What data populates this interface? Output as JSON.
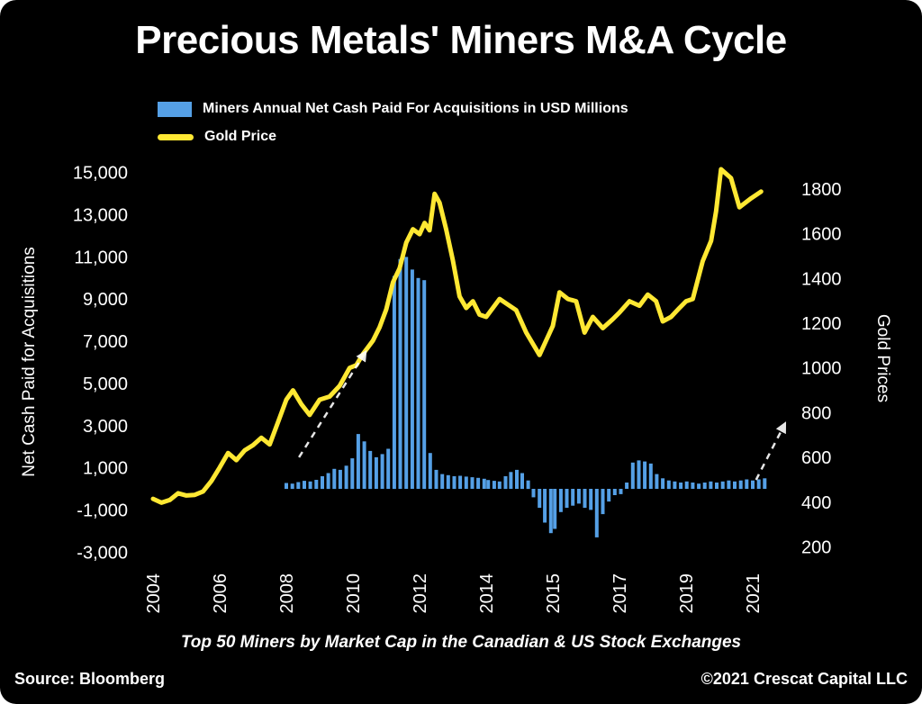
{
  "title": "Precious Metals' Miners M&A Cycle",
  "legend": [
    {
      "label": "Miners Annual Net Cash Paid For Acquisitions in USD Millions"
    },
    {
      "label": "Gold Price"
    }
  ],
  "subtitle": "Top 50 Miners by Market Cap in the Canadian & US Stock Exchanges",
  "footer": {
    "source": "Source: Bloomberg",
    "copyright": "©2021 Crescat Capital LLC"
  },
  "chart_data": {
    "type": "bar",
    "subtype": "dual-axis bar + line",
    "background": "#000000",
    "grid": false,
    "legend_position": "top-left",
    "left_axis": {
      "title": "Net Cash Paid for Acquisitions",
      "range": [
        -3500,
        15500
      ],
      "ticks": [
        {
          "label": "15,000",
          "value": 15000
        },
        {
          "label": "13,000",
          "value": 13000
        },
        {
          "label": "11,000",
          "value": 11000
        },
        {
          "label": "9,000",
          "value": 9000
        },
        {
          "label": "7,000",
          "value": 7000
        },
        {
          "label": "5,000",
          "value": 5000
        },
        {
          "label": "3,000",
          "value": 3000
        },
        {
          "label": "1,000",
          "value": 1000
        },
        {
          "label": "-1,000",
          "value": -1000
        },
        {
          "label": "-3,000",
          "value": -3000
        }
      ]
    },
    "right_axis": {
      "title": "Gold Prices",
      "range": [
        130,
        1920
      ],
      "ticks": [
        {
          "label": "1800",
          "value": 1800
        },
        {
          "label": "1600",
          "value": 1600
        },
        {
          "label": "1400",
          "value": 1400
        },
        {
          "label": "1200",
          "value": 1200
        },
        {
          "label": "1000",
          "value": 1000
        },
        {
          "label": "800",
          "value": 800
        },
        {
          "label": "600",
          "value": 600
        },
        {
          "label": "400",
          "value": 400
        },
        {
          "label": "200",
          "value": 200
        }
      ]
    },
    "x_axis": {
      "labels": [
        "2004",
        "2006",
        "2008",
        "2010",
        "2012",
        "2014",
        "2015",
        "2017",
        "2019",
        "2021"
      ],
      "tick_years": [
        2004,
        2006,
        2008,
        2010,
        2012,
        2014,
        2015,
        2017,
        2019,
        2021
      ]
    },
    "bars": {
      "name": "Miners Annual Net Cash Paid For Acquisitions in USD Millions",
      "color": "#55a0e6",
      "points": [
        [
          2008.0,
          280
        ],
        [
          2008.18,
          250
        ],
        [
          2008.36,
          320
        ],
        [
          2008.54,
          380
        ],
        [
          2008.72,
          350
        ],
        [
          2008.9,
          430
        ],
        [
          2009.08,
          600
        ],
        [
          2009.26,
          750
        ],
        [
          2009.44,
          950
        ],
        [
          2009.62,
          900
        ],
        [
          2009.8,
          1100
        ],
        [
          2009.98,
          1450
        ],
        [
          2010.16,
          2600
        ],
        [
          2010.34,
          2250
        ],
        [
          2010.52,
          1800
        ],
        [
          2010.7,
          1500
        ],
        [
          2010.88,
          1650
        ],
        [
          2011.06,
          1900
        ],
        [
          2011.24,
          10100
        ],
        [
          2011.42,
          10900
        ],
        [
          2011.6,
          11000
        ],
        [
          2011.78,
          10400
        ],
        [
          2011.96,
          10000
        ],
        [
          2012.14,
          9900
        ],
        [
          2012.32,
          1700
        ],
        [
          2012.5,
          900
        ],
        [
          2012.68,
          700
        ],
        [
          2012.86,
          650
        ],
        [
          2013.04,
          600
        ],
        [
          2013.22,
          620
        ],
        [
          2013.4,
          580
        ],
        [
          2013.58,
          550
        ],
        [
          2013.76,
          520
        ],
        [
          2013.94,
          480
        ],
        [
          2014.03,
          420
        ],
        [
          2014.12,
          380
        ],
        [
          2014.2,
          350
        ],
        [
          2014.29,
          600
        ],
        [
          2014.37,
          800
        ],
        [
          2014.46,
          900
        ],
        [
          2014.54,
          750
        ],
        [
          2014.63,
          400
        ],
        [
          2014.71,
          -400
        ],
        [
          2014.8,
          -900
        ],
        [
          2014.88,
          -1600
        ],
        [
          2014.97,
          -2100
        ],
        [
          2015.06,
          -1900
        ],
        [
          2015.24,
          -1100
        ],
        [
          2015.42,
          -900
        ],
        [
          2015.6,
          -800
        ],
        [
          2015.78,
          -700
        ],
        [
          2015.96,
          -900
        ],
        [
          2016.14,
          -1000
        ],
        [
          2016.32,
          -2300
        ],
        [
          2016.5,
          -1200
        ],
        [
          2016.68,
          -600
        ],
        [
          2016.86,
          -300
        ],
        [
          2017.04,
          -250
        ],
        [
          2017.22,
          300
        ],
        [
          2017.4,
          1250
        ],
        [
          2017.58,
          1350
        ],
        [
          2017.76,
          1300
        ],
        [
          2017.94,
          1200
        ],
        [
          2018.12,
          700
        ],
        [
          2018.3,
          500
        ],
        [
          2018.48,
          400
        ],
        [
          2018.66,
          350
        ],
        [
          2018.84,
          300
        ],
        [
          2019.02,
          350
        ],
        [
          2019.2,
          300
        ],
        [
          2019.38,
          250
        ],
        [
          2019.56,
          300
        ],
        [
          2019.74,
          350
        ],
        [
          2019.92,
          300
        ],
        [
          2020.1,
          350
        ],
        [
          2020.28,
          400
        ],
        [
          2020.46,
          350
        ],
        [
          2020.64,
          400
        ],
        [
          2020.82,
          450
        ],
        [
          2021.0,
          400
        ],
        [
          2021.18,
          450
        ],
        [
          2021.36,
          500
        ]
      ]
    },
    "gold_line": {
      "name": "Gold Price",
      "color": "#ffe833",
      "stroke_width": 5,
      "points": [
        [
          2004.0,
          415
        ],
        [
          2004.25,
          398
        ],
        [
          2004.5,
          410
        ],
        [
          2004.75,
          440
        ],
        [
          2005.0,
          430
        ],
        [
          2005.25,
          433
        ],
        [
          2005.5,
          448
        ],
        [
          2005.75,
          495
        ],
        [
          2006.0,
          555
        ],
        [
          2006.25,
          620
        ],
        [
          2006.5,
          588
        ],
        [
          2006.75,
          632
        ],
        [
          2007.0,
          655
        ],
        [
          2007.25,
          688
        ],
        [
          2007.5,
          658
        ],
        [
          2007.75,
          758
        ],
        [
          2008.0,
          858
        ],
        [
          2008.2,
          900
        ],
        [
          2008.45,
          838
        ],
        [
          2008.7,
          790
        ],
        [
          2009.0,
          858
        ],
        [
          2009.3,
          872
        ],
        [
          2009.6,
          920
        ],
        [
          2009.9,
          1000
        ],
        [
          2010.1,
          1012
        ],
        [
          2010.3,
          1062
        ],
        [
          2010.6,
          1122
        ],
        [
          2010.8,
          1182
        ],
        [
          2011.0,
          1262
        ],
        [
          2011.2,
          1382
        ],
        [
          2011.4,
          1445
        ],
        [
          2011.6,
          1560
        ],
        [
          2011.8,
          1620
        ],
        [
          2012.0,
          1598
        ],
        [
          2012.15,
          1648
        ],
        [
          2012.3,
          1615
        ],
        [
          2012.45,
          1778
        ],
        [
          2012.6,
          1738
        ],
        [
          2012.8,
          1618
        ],
        [
          2013.0,
          1480
        ],
        [
          2013.2,
          1320
        ],
        [
          2013.4,
          1268
        ],
        [
          2013.6,
          1298
        ],
        [
          2013.8,
          1238
        ],
        [
          2014.0,
          1228
        ],
        [
          2014.2,
          1308
        ],
        [
          2014.45,
          1258
        ],
        [
          2014.6,
          1158
        ],
        [
          2014.8,
          1058
        ],
        [
          2015.0,
          1188
        ],
        [
          2015.2,
          1338
        ],
        [
          2015.45,
          1308
        ],
        [
          2015.7,
          1298
        ],
        [
          2015.95,
          1158
        ],
        [
          2016.2,
          1228
        ],
        [
          2016.5,
          1178
        ],
        [
          2016.8,
          1218
        ],
        [
          2017.0,
          1248
        ],
        [
          2017.3,
          1298
        ],
        [
          2017.6,
          1278
        ],
        [
          2017.85,
          1328
        ],
        [
          2018.1,
          1298
        ],
        [
          2018.3,
          1208
        ],
        [
          2018.55,
          1228
        ],
        [
          2018.8,
          1268
        ],
        [
          2019.0,
          1298
        ],
        [
          2019.2,
          1308
        ],
        [
          2019.5,
          1478
        ],
        [
          2019.75,
          1568
        ],
        [
          2019.9,
          1700
        ],
        [
          2020.05,
          1888
        ],
        [
          2020.35,
          1848
        ],
        [
          2020.6,
          1718
        ],
        [
          2020.95,
          1758
        ],
        [
          2021.25,
          1788
        ]
      ]
    },
    "annotations": {
      "arrows": [
        {
          "from": [
            2008.38,
            1500
          ],
          "to": [
            2010.38,
            6500
          ]
        },
        {
          "from": [
            2021.1,
            430
          ],
          "to": [
            2021.97,
            3100
          ]
        }
      ],
      "style": "white dashed up-right trend arrows"
    }
  }
}
